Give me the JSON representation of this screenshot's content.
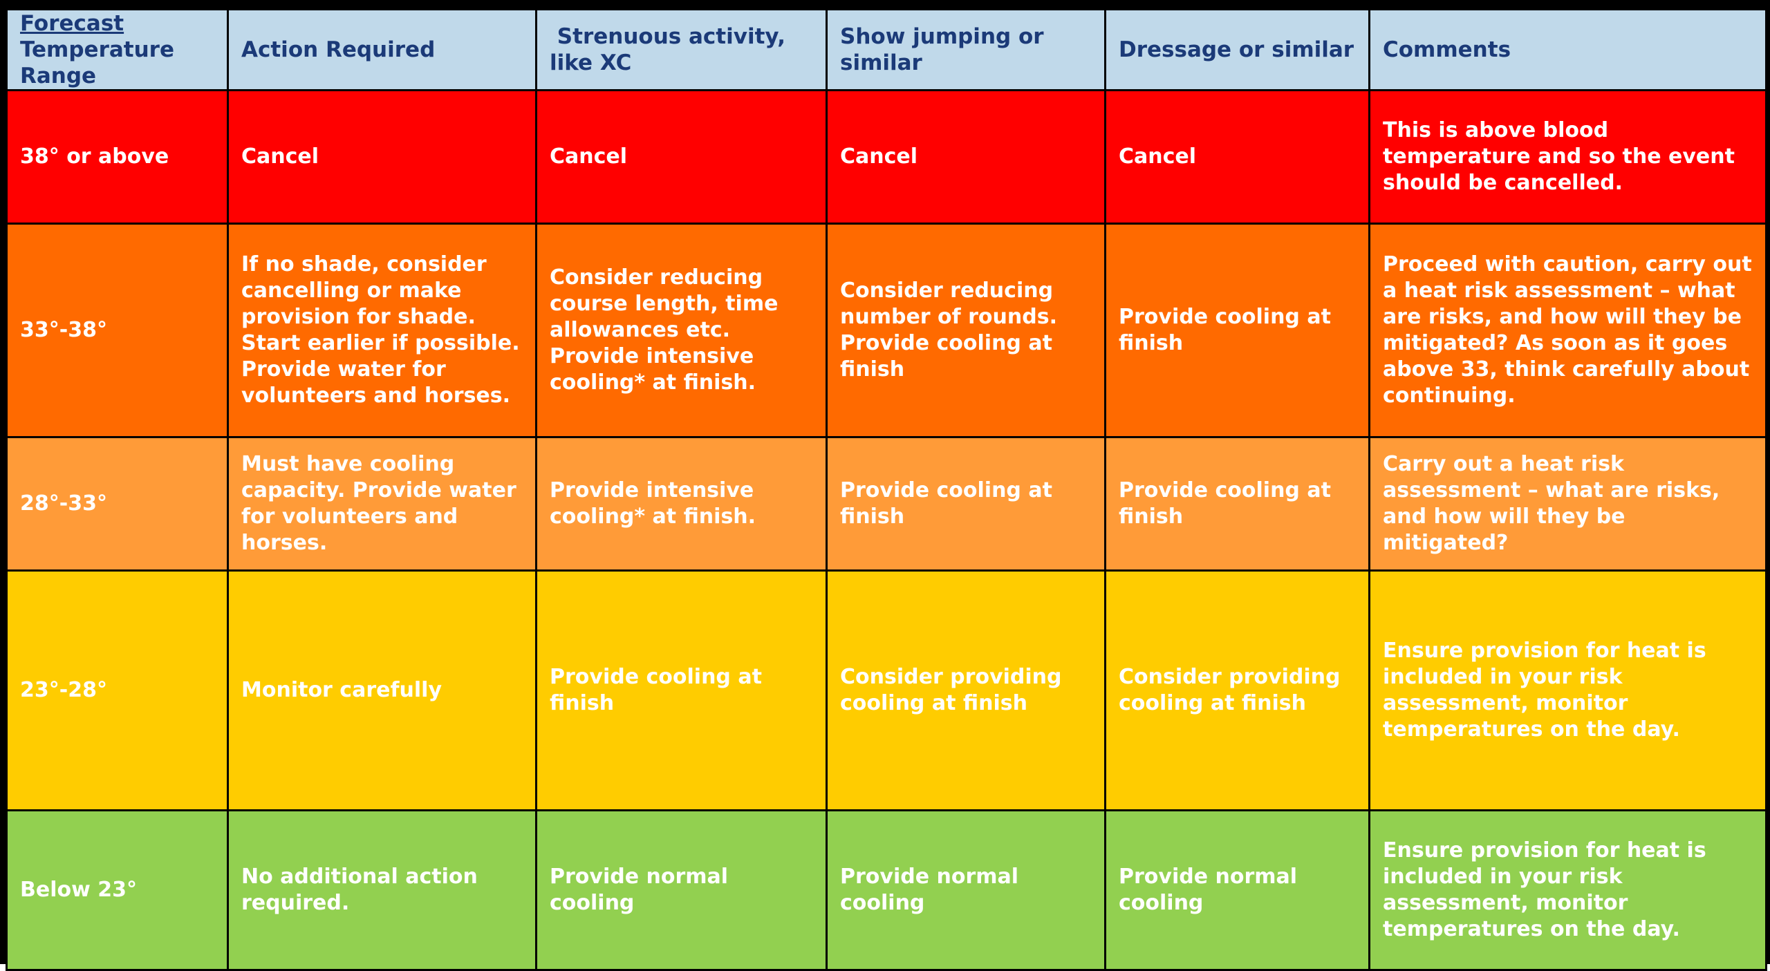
{
  "colors": {
    "header_bg": "#c0d9ea",
    "header_text": "#1b3a78",
    "red": "#ff0000",
    "orange": "#ff6a00",
    "light_orange": "#ff9b38",
    "yellow": "#ffcc00",
    "green": "#92d050"
  },
  "header": {
    "col1_line1": "Forecast",
    "col1_line2": "Temperature\nRange",
    "col2": "Action Required",
    "col3": " Strenuous activity, like XC",
    "col4": "Show jumping or similar",
    "col5": "Dressage or similar",
    "col6": "Comments"
  },
  "rows": [
    {
      "range": "38° or above",
      "action": "Cancel",
      "strenuous": "Cancel",
      "show_jumping": "Cancel",
      "dressage": "Cancel",
      "comments": "This is above blood temperature and so the event should be cancelled."
    },
    {
      "range": "33°-38°",
      "action": "If no shade, consider cancelling or make provision for shade. Start earlier if possible. Provide water for volunteers and horses.",
      "strenuous": "Consider reducing course length, time allowances etc. Provide intensive cooling* at finish.",
      "show_jumping": "Consider reducing number of rounds. Provide cooling at finish",
      "dressage": "Provide cooling at finish",
      "comments": "Proceed with caution, carry out a heat risk assessment – what are risks, and how will they be mitigated? As soon as it goes above 33, think carefully about continuing."
    },
    {
      "range": "28°-33°",
      "action": "Must have cooling capacity. Provide water for volunteers and horses.",
      "strenuous": "Provide intensive cooling* at finish.",
      "show_jumping": "Provide cooling at finish",
      "dressage": "Provide cooling at finish",
      "comments": "Carry out a heat risk assessment – what are risks, and how will they be mitigated?"
    },
    {
      "range": "23°-28°",
      "action": "Monitor carefully",
      "strenuous": "Provide cooling at finish",
      "show_jumping": "Consider providing cooling at finish",
      "dressage": "Consider providing cooling at finish",
      "comments": "Ensure provision for heat is included in your risk assessment, monitor temperatures on the day."
    },
    {
      "range": "Below 23°",
      "action": "No additional action required.",
      "strenuous": "Provide normal cooling",
      "show_jumping": "Provide normal cooling",
      "dressage": "Provide normal cooling",
      "comments": "Ensure provision for heat is included in your risk  assessment, monitor temperatures on the day."
    }
  ]
}
